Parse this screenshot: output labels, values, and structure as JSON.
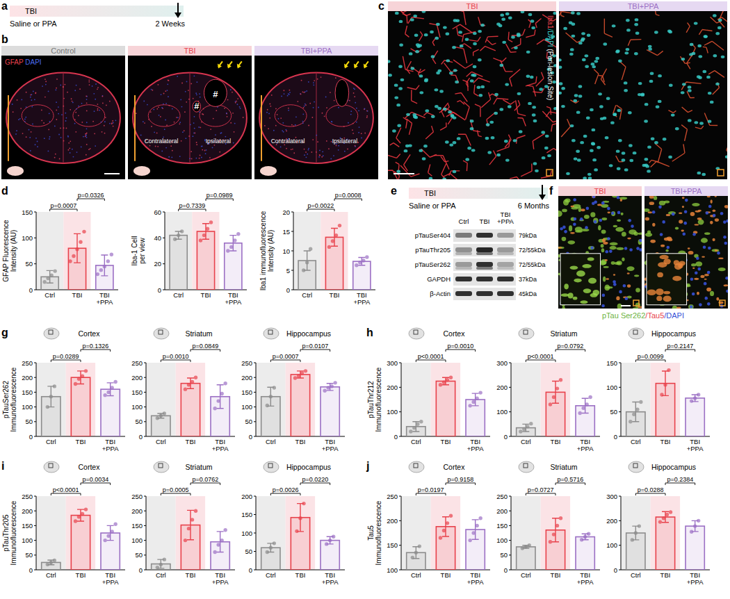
{
  "chart_data": [
    {
      "type": "bar",
      "ylabel": "GFAP Fluorescence Intensity (AU)",
      "categories": [
        "Ctrl",
        "TBI",
        "TBI+PPA"
      ],
      "values": [
        25,
        80,
        47
      ],
      "errors": [
        12,
        28,
        20
      ],
      "points": [
        [
          15,
          22,
          28,
          36
        ],
        [
          55,
          65,
          78,
          92,
          112
        ],
        [
          30,
          38,
          45,
          55,
          68
        ]
      ],
      "colors": [
        "#8c8c8c",
        "#e8414b",
        "#9b6fc4"
      ],
      "ylim": [
        0,
        150
      ],
      "yticks": [
        0,
        50,
        100,
        150
      ],
      "annotations": [
        {
          "text": "p=0.0007",
          "from": 0,
          "to": 1
        },
        {
          "text": "p=0.0326",
          "from": 1,
          "to": 2
        }
      ]
    },
    {
      "type": "bar",
      "ylabel": "Iba-1 Cell per view",
      "categories": [
        "Ctrl",
        "TBI",
        "TBI+PPA"
      ],
      "values": [
        42,
        45,
        36
      ],
      "errors": [
        3,
        6,
        6
      ],
      "points": [
        [
          39,
          42,
          45
        ],
        [
          38,
          42,
          47,
          52
        ],
        [
          30,
          33,
          38,
          43
        ]
      ],
      "colors": [
        "#8c8c8c",
        "#e8414b",
        "#9b6fc4"
      ],
      "ylim": [
        0,
        60
      ],
      "yticks": [
        0,
        20,
        40,
        60
      ],
      "annotations": [
        {
          "text": "p=0.7339",
          "from": 0,
          "to": 1
        },
        {
          "text": "p=0.0989",
          "from": 1,
          "to": 2
        }
      ]
    },
    {
      "type": "bar",
      "ylabel": "Iba1 immunofluorescence Intensity (AU)",
      "categories": [
        "Ctrl",
        "TBI",
        "TBI+PPA"
      ],
      "values": [
        7.5,
        13.5,
        7.3
      ],
      "errors": [
        2.5,
        2.3,
        1
      ],
      "points": [
        [
          5,
          7,
          10.5
        ],
        [
          11,
          12.5,
          14,
          16.5
        ],
        [
          6.3,
          7,
          7.5,
          8.4
        ]
      ],
      "colors": [
        "#8c8c8c",
        "#e8414b",
        "#9b6fc4"
      ],
      "ylim": [
        0,
        20
      ],
      "yticks": [
        0,
        5,
        10,
        15,
        20
      ],
      "annotations": [
        {
          "text": "p=0.0022",
          "from": 0,
          "to": 1
        },
        {
          "text": "p=0.0008",
          "from": 1,
          "to": 2
        }
      ]
    },
    {
      "type": "bar",
      "title": "Cortex",
      "ylabel": "pTauSer262 Immunofluorescence",
      "categories": [
        "Ctrl",
        "TBI",
        "TBI+PPA"
      ],
      "values": [
        135,
        200,
        160
      ],
      "errors": [
        35,
        22,
        22
      ],
      "points": [
        [
          100,
          135,
          170
        ],
        [
          178,
          195,
          205,
          222
        ],
        [
          140,
          150,
          165,
          185
        ]
      ],
      "colors": [
        "#8c8c8c",
        "#e8414b",
        "#9b6fc4"
      ],
      "ylim": [
        0,
        250
      ],
      "yticks": [
        0,
        50,
        100,
        150,
        200,
        250
      ],
      "annotations": [
        {
          "text": "p=0.0289",
          "from": 0,
          "to": 1
        },
        {
          "text": "p=0.1326",
          "from": 1,
          "to": 2
        }
      ]
    },
    {
      "type": "bar",
      "title": "Striatum",
      "categories": [
        "Ctrl",
        "TBI",
        "TBI+PPA"
      ],
      "values": [
        70,
        180,
        135
      ],
      "errors": [
        8,
        18,
        40
      ],
      "points": [
        [
          62,
          70,
          78
        ],
        [
          160,
          175,
          185,
          200
        ],
        [
          95,
          120,
          145,
          180
        ]
      ],
      "colors": [
        "#8c8c8c",
        "#e8414b",
        "#9b6fc4"
      ],
      "ylim": [
        0,
        250
      ],
      "yticks": [
        0,
        50,
        100,
        150,
        200,
        250
      ],
      "annotations": [
        {
          "text": "p=0.0010",
          "from": 0,
          "to": 1
        },
        {
          "text": "p=0.0849",
          "from": 1,
          "to": 2
        }
      ]
    },
    {
      "type": "bar",
      "title": "Hippocampus",
      "categories": [
        "Ctrl",
        "TBI",
        "TBI+PPA"
      ],
      "values": [
        135,
        210,
        168
      ],
      "errors": [
        32,
        12,
        12
      ],
      "points": [
        [
          105,
          135,
          165
        ],
        [
          198,
          205,
          215,
          222
        ],
        [
          155,
          165,
          170,
          182
        ]
      ],
      "colors": [
        "#8c8c8c",
        "#e8414b",
        "#9b6fc4"
      ],
      "ylim": [
        0,
        250
      ],
      "yticks": [
        0,
        50,
        100,
        150,
        200,
        250
      ],
      "annotations": [
        {
          "text": "p=0.0007",
          "from": 0,
          "to": 1
        },
        {
          "text": "p=0.0107",
          "from": 1,
          "to": 2
        }
      ]
    },
    {
      "type": "bar",
      "title": "Cortex",
      "ylabel": "pTauThr212 Immunofluorescence",
      "categories": [
        "Ctrl",
        "TBI",
        "TBI+PPA"
      ],
      "values": [
        40,
        225,
        150
      ],
      "errors": [
        20,
        15,
        25
      ],
      "points": [
        [
          20,
          35,
          50,
          60
        ],
        [
          210,
          220,
          230,
          240
        ],
        [
          125,
          140,
          155,
          178
        ]
      ],
      "colors": [
        "#8c8c8c",
        "#e8414b",
        "#9b6fc4"
      ],
      "ylim": [
        0,
        300
      ],
      "yticks": [
        0,
        100,
        200,
        300
      ],
      "annotations": [
        {
          "text": "p<0.0001",
          "from": 0,
          "to": 1
        },
        {
          "text": "p=0.0010",
          "from": 1,
          "to": 2
        }
      ]
    },
    {
      "type": "bar",
      "title": "Striatum",
      "categories": [
        "Ctrl",
        "TBI",
        "TBI+PPA"
      ],
      "values": [
        35,
        180,
        125
      ],
      "errors": [
        15,
        45,
        30
      ],
      "points": [
        [
          20,
          30,
          40,
          52
        ],
        [
          130,
          160,
          195,
          230
        ],
        [
          95,
          115,
          130,
          160
        ]
      ],
      "colors": [
        "#8c8c8c",
        "#e8414b",
        "#9b6fc4"
      ],
      "ylim": [
        0,
        300
      ],
      "yticks": [
        0,
        100,
        200,
        300
      ],
      "annotations": [
        {
          "text": "p<0.0001",
          "from": 0,
          "to": 1
        },
        {
          "text": "p=0.0792",
          "from": 1,
          "to": 2
        }
      ]
    },
    {
      "type": "bar",
      "title": "Hippocampus",
      "categories": [
        "Ctrl",
        "TBI",
        "TBI+PPA"
      ],
      "values": [
        50,
        108,
        78
      ],
      "errors": [
        20,
        25,
        7
      ],
      "points": [
        [
          30,
          45,
          55,
          70
        ],
        [
          85,
          105,
          135
        ],
        [
          72,
          78,
          85
        ]
      ],
      "colors": [
        "#8c8c8c",
        "#e8414b",
        "#9b6fc4"
      ],
      "ylim": [
        0,
        150
      ],
      "yticks": [
        0,
        50,
        100,
        150
      ],
      "annotations": [
        {
          "text": "p=0.0099",
          "from": 0,
          "to": 1
        },
        {
          "text": "p=0.2147",
          "from": 1,
          "to": 2
        }
      ]
    },
    {
      "type": "bar",
      "title": "Cortex",
      "ylabel": "pTauThr205 Immunofluorescence",
      "categories": [
        "Ctrl",
        "TBI",
        "TBI+PPA"
      ],
      "values": [
        25,
        185,
        125
      ],
      "errors": [
        8,
        20,
        25
      ],
      "points": [
        [
          18,
          25,
          32
        ],
        [
          165,
          180,
          190,
          205
        ],
        [
          100,
          115,
          130,
          155
        ]
      ],
      "colors": [
        "#8c8c8c",
        "#e8414b",
        "#9b6fc4"
      ],
      "ylim": [
        0,
        250
      ],
      "yticks": [
        0,
        50,
        100,
        150,
        200,
        250
      ],
      "annotations": [
        {
          "text": "p<0.0001",
          "from": 0,
          "to": 1
        },
        {
          "text": "p=0.0034",
          "from": 1,
          "to": 2
        }
      ]
    },
    {
      "type": "bar",
      "title": "Striatum",
      "categories": [
        "Ctrl",
        "TBI",
        "TBI+PPA"
      ],
      "values": [
        20,
        152,
        95
      ],
      "errors": [
        15,
        50,
        35
      ],
      "points": [
        [
          8,
          18,
          35
        ],
        [
          100,
          140,
          170,
          200
        ],
        [
          60,
          85,
          100,
          135
        ]
      ],
      "colors": [
        "#8c8c8c",
        "#e8414b",
        "#9b6fc4"
      ],
      "ylim": [
        0,
        250
      ],
      "yticks": [
        0,
        50,
        100,
        150,
        200,
        250
      ],
      "annotations": [
        {
          "text": "p=0.0005",
          "from": 0,
          "to": 1
        },
        {
          "text": "p=0.0762",
          "from": 1,
          "to": 2
        }
      ]
    },
    {
      "type": "bar",
      "title": "Hippocampus",
      "categories": [
        "Ctrl",
        "TBI",
        "TBI+PPA"
      ],
      "values": [
        60,
        142,
        80
      ],
      "errors": [
        12,
        38,
        10
      ],
      "points": [
        [
          48,
          60,
          72
        ],
        [
          105,
          140,
          180
        ],
        [
          70,
          80,
          90
        ]
      ],
      "colors": [
        "#8c8c8c",
        "#e8414b",
        "#9b6fc4"
      ],
      "ylim": [
        0,
        200
      ],
      "yticks": [
        0,
        50,
        100,
        150,
        200
      ],
      "annotations": [
        {
          "text": "p=0.0026",
          "from": 0,
          "to": 1
        },
        {
          "text": "p=0.0220",
          "from": 1,
          "to": 2
        }
      ]
    },
    {
      "type": "bar",
      "title": "Cortex",
      "ylabel": "Tau5 Immunofluorescence",
      "categories": [
        "Ctrl",
        "TBI",
        "TBI+PPA"
      ],
      "values": [
        135,
        188,
        182
      ],
      "errors": [
        12,
        20,
        20
      ],
      "points": [
        [
          125,
          135,
          148
        ],
        [
          165,
          180,
          195,
          210
        ],
        [
          160,
          175,
          190,
          205
        ]
      ],
      "colors": [
        "#8c8c8c",
        "#e8414b",
        "#9b6fc4"
      ],
      "ylim": [
        100,
        250
      ],
      "yticks": [
        100,
        150,
        200,
        250
      ],
      "annotations": [
        {
          "text": "p=0.0197",
          "from": 0,
          "to": 1
        },
        {
          "text": "p=0.9158",
          "from": 1,
          "to": 2
        }
      ]
    },
    {
      "type": "bar",
      "title": "Striatum",
      "categories": [
        "Ctrl",
        "TBI",
        "TBI+PPA"
      ],
      "values": [
        78,
        135,
        112
      ],
      "errors": [
        5,
        40,
        10
      ],
      "points": [
        [
          73,
          78,
          83
        ],
        [
          95,
          120,
          150,
          175
        ],
        [
          102,
          112,
          122
        ]
      ],
      "colors": [
        "#8c8c8c",
        "#e8414b",
        "#9b6fc4"
      ],
      "ylim": [
        0,
        250
      ],
      "yticks": [
        0,
        50,
        100,
        150,
        200,
        250
      ],
      "annotations": [
        {
          "text": "p=0.0727",
          "from": 0,
          "to": 1
        },
        {
          "text": "p=0.5716",
          "from": 1,
          "to": 2
        }
      ]
    },
    {
      "type": "bar",
      "title": "Hippocampus",
      "categories": [
        "Ctrl",
        "TBI",
        "TBI+PPA"
      ],
      "values": [
        150,
        215,
        178
      ],
      "errors": [
        28,
        22,
        22
      ],
      "points": [
        [
          122,
          150,
          178
        ],
        [
          195,
          210,
          225,
          235
        ],
        [
          155,
          178,
          200
        ]
      ],
      "colors": [
        "#8c8c8c",
        "#e8414b",
        "#9b6fc4"
      ],
      "ylim": [
        0,
        300
      ],
      "yticks": [
        0,
        100,
        200,
        300
      ],
      "annotations": [
        {
          "text": "p=0.0288",
          "from": 0,
          "to": 1
        },
        {
          "text": "p=0.2384",
          "from": 1,
          "to": 2
        }
      ]
    }
  ],
  "figure": {
    "panel_labels": [
      "a",
      "b",
      "c",
      "d",
      "e",
      "f",
      "g",
      "h",
      "i",
      "j"
    ],
    "a": {
      "bar_text": "TBI",
      "treatment": "Saline or PPA",
      "endpoint": "2 Weeks"
    },
    "b": {
      "titles": [
        "Control",
        "TBI",
        "TBI+PPA"
      ],
      "stain": [
        "GFAP",
        " DAPI"
      ],
      "sides": [
        "Contralateral",
        "Ipsilateral"
      ],
      "lesion_mark": "#"
    },
    "c": {
      "titles": [
        "TBI",
        "TBI+PPA"
      ],
      "stain": [
        "Iba1",
        "/DAPI",
        " (Peri-lesion Site)"
      ]
    },
    "e": {
      "bar_text": "TBI",
      "treatment": "Saline or PPA",
      "endpoint": "6 Months",
      "lanes": [
        "Ctrl",
        "TBI",
        "TBI +PPA"
      ],
      "rows": [
        {
          "name": "pTauSer404",
          "size": "79kDa"
        },
        {
          "name": "pTauThr205",
          "size": "72/55kDa"
        },
        {
          "name": "pTauSer262",
          "size": "72/55kDa"
        },
        {
          "name": "GAPDH",
          "size": "37kDa"
        },
        {
          "name": "β-Actin",
          "size": "45kDa"
        }
      ]
    },
    "f": {
      "titles": [
        "TBI",
        "TBI+PPA"
      ],
      "stain": [
        "pTau Ser262",
        "/Tau5",
        "/DAPI"
      ]
    }
  }
}
